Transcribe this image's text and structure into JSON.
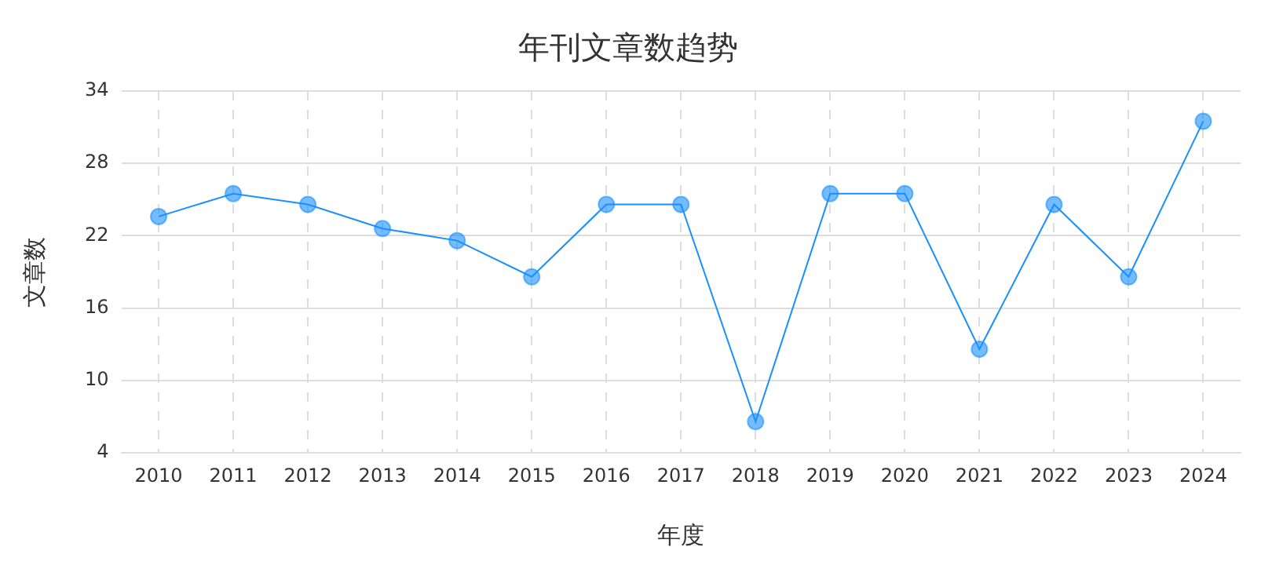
{
  "chart_data": {
    "type": "line",
    "title": "年刊文章数趋势",
    "xlabel": "年度",
    "ylabel": "文章数",
    "categories": [
      "2010",
      "2011",
      "2012",
      "2013",
      "2014",
      "2015",
      "2016",
      "2017",
      "2018",
      "2019",
      "2020",
      "2021",
      "2022",
      "2023",
      "2024"
    ],
    "series": [
      {
        "color": "#1890ff",
        "values": [
          23.6,
          25.5,
          24.6,
          22.6,
          21.6,
          18.6,
          24.6,
          24.6,
          6.6,
          25.5,
          25.5,
          12.6,
          24.6,
          18.6,
          31.5
        ]
      }
    ],
    "ylim": [
      4,
      34
    ],
    "yticks": [
      4,
      10,
      16,
      22,
      28,
      34
    ],
    "grid": true,
    "marker": "circle",
    "line_style": "solid"
  }
}
